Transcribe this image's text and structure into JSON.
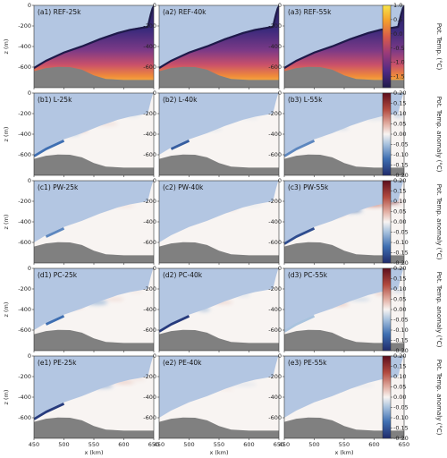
{
  "chart_data": {
    "type": "heatmap",
    "layout": {
      "rows": 5,
      "cols": 3
    },
    "xlabel": "x (km)",
    "ylabel": "z (m)",
    "xlim": [
      450,
      650
    ],
    "ylim": [
      -800,
      0
    ],
    "xticks": [
      "450",
      "500",
      "550",
      "600",
      "650"
    ],
    "yticks": [
      "0",
      "-200",
      "-400",
      "-600"
    ],
    "colors": {
      "ice": "#b3c6e2",
      "bedrock": "#808080",
      "seabed_line": "#666666",
      "neutral": "#f8f4f2"
    },
    "colorbars": [
      {
        "row": 0,
        "label": "Pot. Temp. (°C)",
        "range": [
          -1.9,
          1.0
        ],
        "ticks": [
          "1.0",
          "0.5",
          "0.0",
          "-0.5",
          "-1.0",
          "-1.5"
        ],
        "cmap": "thermal"
      },
      {
        "row": 1,
        "label": "Pot. Temp. anomaly (°C)",
        "range": [
          -0.2,
          0.2
        ],
        "ticks": [
          "0.20",
          "0.15",
          "0.10",
          "0.05",
          "0.00",
          "-0.05",
          "-0.10",
          "-0.15",
          "-0.20"
        ],
        "cmap": "balance"
      },
      {
        "row": 2,
        "label": "Pot. Temp. anomaly (°C)",
        "range": [
          -0.2,
          0.2
        ],
        "ticks": [
          "0.20",
          "0.15",
          "0.10",
          "0.05",
          "0.00",
          "-0.05",
          "-0.10",
          "-0.15",
          "-0.20"
        ],
        "cmap": "balance"
      },
      {
        "row": 3,
        "label": "Pot. Temp. anomaly (°C)",
        "range": [
          -0.2,
          0.2
        ],
        "ticks": [
          "0.20",
          "0.15",
          "0.10",
          "0.05",
          "0.00",
          "-0.05",
          "-0.10",
          "-0.15",
          "-0.20"
        ],
        "cmap": "balance"
      },
      {
        "row": 4,
        "label": "Pot. Temp. anomaly (°C)",
        "range": [
          -0.2,
          0.2
        ],
        "ticks": [
          "0.20",
          "0.15",
          "0.10",
          "0.05",
          "0.00",
          "-0.05",
          "-0.10",
          "-0.15",
          "-0.20"
        ],
        "cmap": "balance"
      }
    ],
    "ice_base": [
      [
        450,
        -600
      ],
      [
        470,
        -530
      ],
      [
        500,
        -450
      ],
      [
        530,
        -390
      ],
      [
        560,
        -320
      ],
      [
        590,
        -260
      ],
      [
        610,
        -230
      ],
      [
        625,
        -215
      ],
      [
        640,
        -200
      ],
      [
        645,
        -80
      ],
      [
        648,
        -20
      ],
      [
        650,
        0
      ]
    ],
    "bedrock": [
      [
        450,
        -640
      ],
      [
        470,
        -610
      ],
      [
        490,
        -598
      ],
      [
        510,
        -600
      ],
      [
        530,
        -625
      ],
      [
        550,
        -680
      ],
      [
        570,
        -715
      ],
      [
        600,
        -725
      ],
      [
        650,
        -725
      ]
    ],
    "panels": [
      {
        "row": 0,
        "col": 0,
        "label": "(a1) REF-25k",
        "kind": "ref"
      },
      {
        "row": 0,
        "col": 1,
        "label": "(a2) REF-40k",
        "kind": "ref"
      },
      {
        "row": 0,
        "col": 2,
        "label": "(a3) REF-55k",
        "kind": "ref"
      },
      {
        "row": 1,
        "col": 0,
        "label": "(b1) L-25k",
        "kind": "anom",
        "features": [
          {
            "type": "blob",
            "cx": 510,
            "cz": -390,
            "rx": 16,
            "rz": 22,
            "value": -0.05
          },
          {
            "type": "blob",
            "cx": 530,
            "cz": -360,
            "rx": 10,
            "rz": 15,
            "value": 0.04
          },
          {
            "type": "blob",
            "cx": 570,
            "cz": -300,
            "rx": 20,
            "rz": 10,
            "value": 0.03
          },
          {
            "type": "blob",
            "cx": 615,
            "cz": -215,
            "rx": 12,
            "rz": 6,
            "value": -0.05
          },
          {
            "type": "edge",
            "from": 450,
            "to": 500,
            "value": -0.12
          }
        ]
      },
      {
        "row": 1,
        "col": 1,
        "label": "(b2) L-40k",
        "kind": "anom",
        "features": [
          {
            "type": "edge",
            "from": 452,
            "to": 505,
            "value": -0.14
          },
          {
            "type": "blob",
            "cx": 540,
            "cz": -350,
            "rx": 14,
            "rz": 10,
            "value": -0.03
          },
          {
            "type": "blob",
            "cx": 600,
            "cz": -240,
            "rx": 16,
            "rz": 6,
            "value": -0.03
          }
        ]
      },
      {
        "row": 1,
        "col": 2,
        "label": "(b3) L-55k",
        "kind": "anom",
        "features": [
          {
            "type": "edge",
            "from": 450,
            "to": 520,
            "value": -0.1
          },
          {
            "type": "blob",
            "cx": 505,
            "cz": -400,
            "rx": 10,
            "rz": 15,
            "value": -0.05
          },
          {
            "type": "blob",
            "cx": 545,
            "cz": -340,
            "rx": 12,
            "rz": 8,
            "value": -0.06
          },
          {
            "type": "blob",
            "cx": 600,
            "cz": -245,
            "rx": 18,
            "rz": 8,
            "value": -0.04
          },
          {
            "type": "blob",
            "cx": 640,
            "cz": -220,
            "rx": 8,
            "rz": 12,
            "value": -0.06
          }
        ]
      },
      {
        "row": 2,
        "col": 0,
        "label": "(c1) PW-25k",
        "kind": "anom",
        "features": [
          {
            "type": "edge",
            "from": 455,
            "to": 505,
            "value": -0.1
          },
          {
            "type": "blob",
            "cx": 535,
            "cz": -250,
            "rx": 16,
            "rz": 16,
            "value": 0.07
          },
          {
            "type": "blob",
            "cx": 560,
            "cz": -255,
            "rx": 14,
            "rz": 14,
            "value": -0.12
          },
          {
            "type": "blob",
            "cx": 600,
            "cz": -245,
            "rx": 18,
            "rz": 7,
            "value": 0.03
          }
        ]
      },
      {
        "row": 2,
        "col": 1,
        "label": "(c2) PW-40k",
        "kind": "anom",
        "features": [
          {
            "type": "edge",
            "from": 455,
            "to": 490,
            "value": -0.06
          },
          {
            "type": "blob",
            "cx": 560,
            "cz": -275,
            "rx": 20,
            "rz": 10,
            "value": 0.03
          },
          {
            "type": "blob",
            "cx": 605,
            "cz": -235,
            "rx": 15,
            "rz": 6,
            "value": -0.03
          }
        ]
      },
      {
        "row": 2,
        "col": 2,
        "label": "(c3) PW-55k",
        "kind": "anom",
        "features": [
          {
            "type": "edge",
            "from": 450,
            "to": 520,
            "value": -0.16
          },
          {
            "type": "blob",
            "cx": 560,
            "cz": -290,
            "rx": 20,
            "rz": 16,
            "value": -0.12
          },
          {
            "type": "blob",
            "cx": 600,
            "cz": -235,
            "rx": 20,
            "rz": 12,
            "value": 0.12
          },
          {
            "type": "blob",
            "cx": 630,
            "cz": -210,
            "rx": 14,
            "rz": 12,
            "value": 0.17
          },
          {
            "type": "blob",
            "cx": 540,
            "cz": -330,
            "rx": 12,
            "rz": 8,
            "value": 0.05
          }
        ]
      },
      {
        "row": 3,
        "col": 0,
        "label": "(d1) PC-25k",
        "kind": "anom",
        "features": [
          {
            "type": "edge",
            "from": 452,
            "to": 500,
            "value": -0.12
          },
          {
            "type": "blob",
            "cx": 520,
            "cz": -370,
            "rx": 12,
            "rz": 16,
            "value": 0.04
          },
          {
            "type": "blob",
            "cx": 555,
            "cz": -330,
            "rx": 18,
            "rz": 22,
            "value": -0.06
          },
          {
            "type": "blob",
            "cx": 585,
            "cz": -300,
            "rx": 15,
            "rz": 8,
            "value": 0.04
          },
          {
            "type": "blob",
            "cx": 620,
            "cz": -225,
            "rx": 12,
            "rz": 5,
            "value": 0.03
          }
        ]
      },
      {
        "row": 3,
        "col": 1,
        "label": "(d2) PC-40k",
        "kind": "anom",
        "features": [
          {
            "type": "edge",
            "from": 450,
            "to": 515,
            "value": -0.18
          },
          {
            "type": "blob",
            "cx": 525,
            "cz": -400,
            "rx": 10,
            "rz": 15,
            "value": -0.06
          },
          {
            "type": "blob",
            "cx": 555,
            "cz": -330,
            "rx": 18,
            "rz": 10,
            "value": 0.04
          },
          {
            "type": "blob",
            "cx": 590,
            "cz": -260,
            "rx": 12,
            "rz": 6,
            "value": -0.05
          }
        ]
      },
      {
        "row": 3,
        "col": 2,
        "label": "(d3) PC-55k",
        "kind": "anom",
        "features": [
          {
            "type": "edge",
            "from": 450,
            "to": 500,
            "value": -0.05
          },
          {
            "type": "blob",
            "cx": 540,
            "cz": -350,
            "rx": 18,
            "rz": 12,
            "value": 0.05
          },
          {
            "type": "blob",
            "cx": 575,
            "cz": -300,
            "rx": 18,
            "rz": 10,
            "value": -0.05
          },
          {
            "type": "blob",
            "cx": 615,
            "cz": -245,
            "rx": 15,
            "rz": 8,
            "value": 0.06
          },
          {
            "type": "blob",
            "cx": 640,
            "cz": -215,
            "rx": 8,
            "rz": 8,
            "value": -0.07
          }
        ]
      },
      {
        "row": 4,
        "col": 0,
        "label": "(e1) PE-25k",
        "kind": "anom",
        "features": [
          {
            "type": "edge",
            "from": 450,
            "to": 505,
            "value": -0.18
          },
          {
            "type": "blob",
            "cx": 520,
            "cz": -320,
            "rx": 22,
            "rz": 28,
            "value": -0.08
          },
          {
            "type": "blob",
            "cx": 560,
            "cz": -290,
            "rx": 22,
            "rz": 18,
            "value": -0.07
          },
          {
            "type": "blob",
            "cx": 600,
            "cz": -255,
            "rx": 18,
            "rz": 12,
            "value": 0.04
          },
          {
            "type": "blob",
            "cx": 625,
            "cz": -225,
            "rx": 10,
            "rz": 7,
            "value": 0.03
          }
        ]
      },
      {
        "row": 4,
        "col": 1,
        "label": "(e2) PE-40k",
        "kind": "anom",
        "features": [
          {
            "type": "blob",
            "cx": 590,
            "cz": -275,
            "rx": 22,
            "rz": 10,
            "value": -0.025
          },
          {
            "type": "blob",
            "cx": 560,
            "cz": -320,
            "rx": 15,
            "rz": 8,
            "value": 0.015
          }
        ]
      },
      {
        "row": 4,
        "col": 2,
        "label": "(e3) PE-55k",
        "kind": "anom",
        "features": [
          {
            "type": "blob",
            "cx": 580,
            "cz": -285,
            "rx": 20,
            "rz": 8,
            "value": -0.02
          },
          {
            "type": "blob",
            "cx": 620,
            "cz": -230,
            "rx": 10,
            "rz": 6,
            "value": 0.015
          }
        ]
      }
    ]
  }
}
